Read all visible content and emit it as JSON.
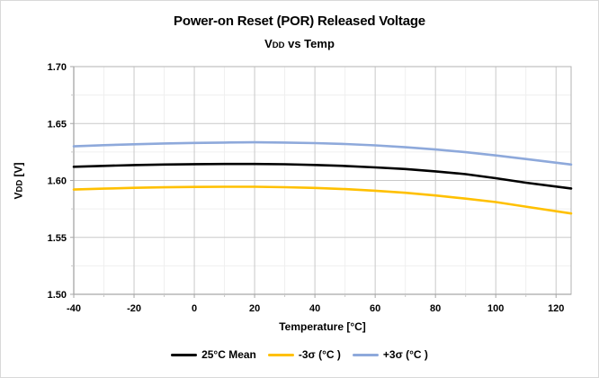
{
  "title": "Power-on Reset (POR) Released Voltage",
  "subtitle": {
    "prefix": "V",
    "sub": "DD",
    "rest": " vs Temp"
  },
  "chart_data": {
    "type": "line",
    "title": "Power-on Reset (POR) Released Voltage",
    "subtitle": "VDD vs Temp",
    "xlabel": "Temperature [°C]",
    "ylabel": {
      "prefix": "V",
      "sub": "DD",
      "rest": " [V]"
    },
    "xlim": [
      -40,
      125
    ],
    "ylim": [
      1.5,
      1.7
    ],
    "x_ticks": [
      -40,
      -20,
      0,
      20,
      40,
      60,
      80,
      100,
      120
    ],
    "x_minor_step": 10,
    "y_ticks": [
      1.5,
      1.55,
      1.6,
      1.65,
      1.7
    ],
    "y_minor_step": 0.025,
    "grid": true,
    "legend_position": "bottom",
    "x": [
      -40,
      -30,
      -20,
      -10,
      0,
      10,
      20,
      30,
      40,
      50,
      60,
      70,
      80,
      90,
      100,
      110,
      125
    ],
    "series": [
      {
        "name": "25°C Mean",
        "color": "#000000",
        "values": [
          1.612,
          1.6128,
          1.6135,
          1.614,
          1.6143,
          1.6145,
          1.6145,
          1.6142,
          1.6136,
          1.6127,
          1.6115,
          1.61,
          1.608,
          1.6055,
          1.602,
          1.598,
          1.593
        ]
      },
      {
        "name": "-3σ (°C )",
        "color": "#FFC000",
        "values": [
          1.592,
          1.5928,
          1.5935,
          1.594,
          1.5943,
          1.5945,
          1.5945,
          1.5941,
          1.5934,
          1.5924,
          1.591,
          1.5892,
          1.5868,
          1.584,
          1.581,
          1.577,
          1.571
        ]
      },
      {
        "name": "+3σ (°C )",
        "color": "#8EA9DB",
        "values": [
          1.63,
          1.631,
          1.6318,
          1.6325,
          1.633,
          1.6333,
          1.6335,
          1.6333,
          1.6328,
          1.632,
          1.6308,
          1.6292,
          1.6272,
          1.6248,
          1.622,
          1.6188,
          1.614
        ]
      }
    ],
    "colors": {
      "axis": "#A6A6A6",
      "grid_major": "#C9C9C9",
      "grid_minor": "#EFEFEF",
      "plot_border": "#B3B3B3"
    }
  }
}
